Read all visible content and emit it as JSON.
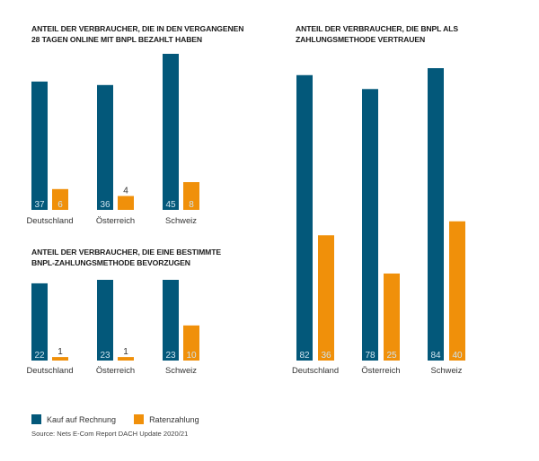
{
  "colors": {
    "series1": "#03587A",
    "series2": "#F0900A",
    "label_text": "#cfe3ee",
    "category_text": "#333333"
  },
  "legend": {
    "items": [
      {
        "label": "Kauf auf Rechnung"
      },
      {
        "label": "Ratenzahlung"
      }
    ]
  },
  "source": "Source: Nets E-Com Report DACH Update 2020/21",
  "chart_data": [
    {
      "type": "bar",
      "title": "ANTEIL DER VERBRAUCHER, DIE IN DEN VERGANGENEN 28 TAGEN ONLINE MIT BNPL BEZAHLT HABEN",
      "title_lines": [
        "ANTEIL DER VERBRAUCHER, DIE IN DEN VERGANGENEN",
        "28 TAGEN ONLINE MIT BNPL BEZAHLT HABEN"
      ],
      "categories": [
        "Deutschland",
        "Österreich",
        "Schweiz"
      ],
      "series": [
        {
          "name": "Kauf auf Rechnung",
          "values": [
            37,
            36,
            45
          ]
        },
        {
          "name": "Ratenzahlung",
          "values": [
            6,
            4,
            8
          ]
        }
      ],
      "grid": false,
      "legend": "bottom-left",
      "ylim": [
        0,
        45
      ]
    },
    {
      "type": "bar",
      "title": "ANTEIL DER VERBRAUCHER, DIE EINE BESTIMMTE BNPL-ZAHLUNGSMETHODE BEVORZUGEN",
      "title_lines": [
        "ANTEIL DER VERBRAUCHER, DIE EINE BESTIMMTE",
        "BNPL-ZAHLUNGSMETHODE BEVORZUGEN"
      ],
      "categories": [
        "Deutschland",
        "Österreich",
        "Schweiz"
      ],
      "series": [
        {
          "name": "Kauf auf Rechnung",
          "values": [
            22,
            23,
            23
          ]
        },
        {
          "name": "Ratenzahlung",
          "values": [
            1,
            1,
            10
          ]
        }
      ],
      "grid": false,
      "legend": "bottom-left",
      "ylim": [
        0,
        23
      ]
    },
    {
      "type": "bar",
      "title": "ANTEIL DER VERBRAUCHER, DIE BNPL ALS ZAHLUNGSMETHODE VERTRAUEN",
      "title_lines": [
        "ANTEIL DER VERBRAUCHER, DIE BNPL ALS",
        "ZAHLUNGSMETHODE VERTRAUEN"
      ],
      "categories": [
        "Deutschland",
        "Österreich",
        "Schweiz"
      ],
      "series": [
        {
          "name": "Kauf auf Rechnung",
          "values": [
            82,
            78,
            84
          ]
        },
        {
          "name": "Ratenzahlung",
          "values": [
            36,
            25,
            40
          ]
        }
      ],
      "grid": false,
      "legend": "bottom-left",
      "ylim": [
        0,
        84
      ]
    }
  ]
}
